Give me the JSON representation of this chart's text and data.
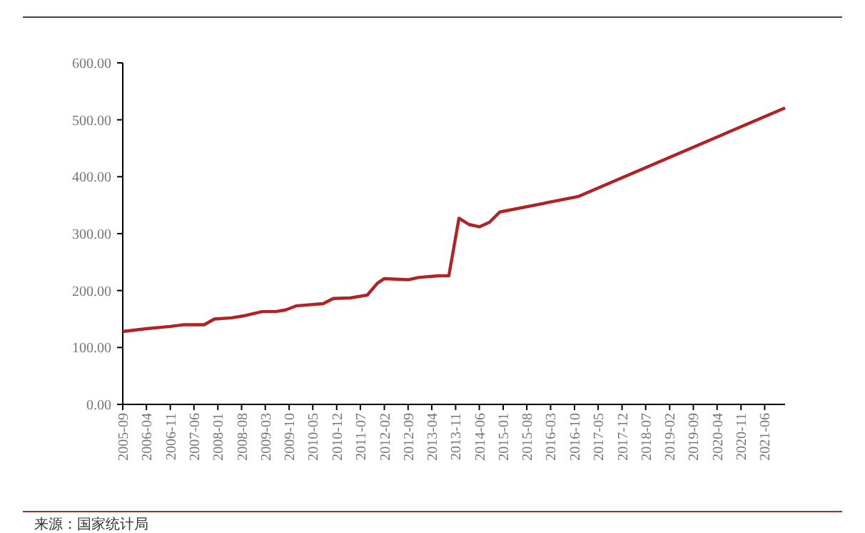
{
  "chart_data": {
    "type": "line",
    "x": [
      "2005-09",
      "2006-04",
      "2006-11",
      "2007-03",
      "2007-09",
      "2007-12",
      "2008-05",
      "2008-09",
      "2009-02",
      "2009-06",
      "2009-09",
      "2009-12",
      "2010-08",
      "2010-11",
      "2011-04",
      "2011-09",
      "2011-12",
      "2012-02",
      "2012-09",
      "2012-12",
      "2013-06",
      "2013-09",
      "2013-12",
      "2014-03",
      "2014-06",
      "2014-09",
      "2014-12",
      "2016-11",
      "2021-12"
    ],
    "series": [
      {
        "color": "#b22222",
        "values": [
          128,
          133,
          137,
          140,
          140,
          150,
          152,
          156,
          163,
          163,
          166,
          173,
          177,
          186,
          187,
          192,
          213,
          221,
          219,
          223,
          226,
          226,
          327,
          316,
          312,
          320,
          338,
          365,
          521
        ]
      }
    ],
    "xlim": [
      "2005-09",
      "2021-12"
    ],
    "xticks": [
      "2005-09",
      "2006-04",
      "2006-11",
      "2007-06",
      "2008-01",
      "2008-08",
      "2009-03",
      "2009-10",
      "2010-05",
      "2010-12",
      "2011-07",
      "2012-02",
      "2012-09",
      "2013-04",
      "2013-11",
      "2014-06",
      "2015-01",
      "2015-08",
      "2016-03",
      "2016-10",
      "2017-05",
      "2017-12",
      "2018-07",
      "2019-02",
      "2019-09",
      "2020-04",
      "2020-11",
      "2021-06"
    ],
    "ylim": [
      0,
      600
    ],
    "yticks": [
      {
        "value": 0,
        "label": "0.00"
      },
      {
        "value": 100,
        "label": "100.00"
      },
      {
        "value": 200,
        "label": "200.00"
      },
      {
        "value": 300,
        "label": "300.00"
      },
      {
        "value": 400,
        "label": "400.00"
      },
      {
        "value": 500,
        "label": "500.00"
      },
      {
        "value": 600,
        "label": "600.00"
      }
    ],
    "marker": "none",
    "line_style": "solid",
    "annotations": [
      "来源：国家统计局"
    ]
  }
}
